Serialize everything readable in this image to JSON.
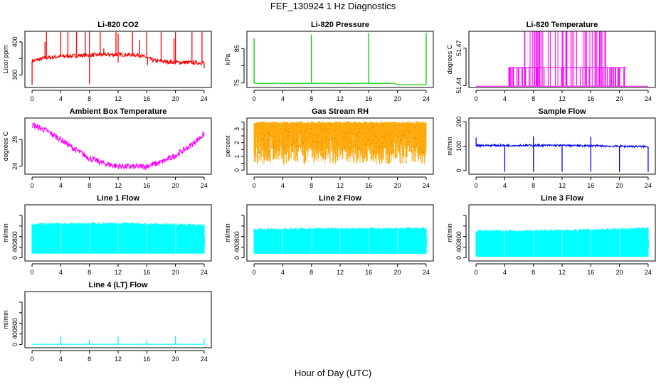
{
  "page": {
    "title": "FEF_130924  1 Hz Diagnostics",
    "xlabel": "Hour of Day (UTC)"
  },
  "chart_data": [
    {
      "type": "line",
      "title": "Li-820 CO2",
      "ylabel": "Licor ppm",
      "color": "#ff0000",
      "x_ticks": [
        0,
        4,
        8,
        12,
        16,
        20,
        24
      ],
      "xlim": [
        -1,
        25
      ],
      "y_ticks": [
        300,
        350,
        400
      ],
      "y_tick_labels": [
        "300",
        "",
        "400"
      ],
      "ylim": [
        262,
        432
      ],
      "baseline": [
        [
          0,
          342
        ],
        [
          2,
          352
        ],
        [
          4,
          356
        ],
        [
          8,
          360
        ],
        [
          12,
          362
        ],
        [
          15,
          360
        ],
        [
          16,
          352
        ],
        [
          17,
          343
        ],
        [
          20,
          338
        ],
        [
          24,
          337
        ]
      ],
      "noise": 6,
      "spikes": [
        [
          0,
          270
        ],
        [
          1.8,
          400
        ],
        [
          2,
          430
        ],
        [
          4,
          430
        ],
        [
          5,
          430
        ],
        [
          6.2,
          430
        ],
        [
          7.4,
          430
        ],
        [
          8,
          432
        ],
        [
          8,
          272
        ],
        [
          9.5,
          430
        ],
        [
          10,
          380
        ],
        [
          11.7,
          430
        ],
        [
          12,
          425
        ],
        [
          12,
          338
        ],
        [
          14,
          430
        ],
        [
          15,
          405
        ],
        [
          16,
          430
        ],
        [
          16.1,
          330
        ],
        [
          18,
          430
        ],
        [
          19.8,
          410
        ],
        [
          20,
          430
        ],
        [
          22.3,
          430
        ],
        [
          23.7,
          430
        ],
        [
          24,
          320
        ]
      ]
    },
    {
      "type": "line",
      "title": "Li-820 Pressure",
      "ylabel": "kPa",
      "color": "#00cc00",
      "x_ticks": [
        0,
        4,
        8,
        12,
        16,
        20,
        24
      ],
      "xlim": [
        -1,
        25
      ],
      "y_ticks": [
        75,
        80,
        85
      ],
      "y_tick_labels": [
        "75",
        "",
        "85"
      ],
      "ylim": [
        73.7,
        90
      ],
      "baseline": [
        [
          0,
          74.9
        ],
        [
          19.5,
          74.9
        ],
        [
          20,
          74.5
        ],
        [
          24,
          74.5
        ]
      ],
      "noise": 0.04,
      "spikes": [
        [
          0,
          88
        ],
        [
          8,
          89
        ],
        [
          16,
          89.5
        ],
        [
          24,
          89.5
        ]
      ]
    },
    {
      "type": "line",
      "title": "Li-820 Temperature",
      "ylabel": "degrees C",
      "color": "#ff00ff",
      "x_ticks": [
        0,
        4,
        8,
        12,
        16,
        20,
        24
      ],
      "xlim": [
        -1,
        25
      ],
      "y_ticks": [
        51.44,
        51.47
      ],
      "y_tick_labels": [
        "51.44",
        "51.47"
      ],
      "ylim": [
        51.4385,
        51.4835
      ],
      "levels": [
        51.4395,
        51.4545,
        51.4695
      ],
      "top_value": 51.4834,
      "segments": [
        [
          0,
          4.5,
          "low"
        ],
        [
          4.5,
          6.5,
          "mid_rare"
        ],
        [
          6.5,
          8.5,
          "mid_top_rare"
        ],
        [
          8.5,
          18.5,
          "mid_top"
        ],
        [
          18.5,
          21,
          "mid_rare"
        ],
        [
          21,
          24,
          "low"
        ]
      ]
    },
    {
      "type": "line",
      "title": "Ambient Box Temperature",
      "ylabel": "degrees C",
      "color": "#ff00ff",
      "x_ticks": [
        0,
        4,
        8,
        12,
        16,
        20,
        24
      ],
      "xlim": [
        -1,
        25
      ],
      "y_ticks": [
        24,
        28
      ],
      "y_tick_labels": [
        "24",
        "28"
      ],
      "ylim": [
        22.8,
        31.2
      ],
      "baseline": [
        [
          0,
          30.2
        ],
        [
          2,
          29.3
        ],
        [
          4,
          28.0
        ],
        [
          6,
          26.5
        ],
        [
          8,
          25.2
        ],
        [
          10,
          24.4
        ],
        [
          12,
          24.0
        ],
        [
          14,
          23.9
        ],
        [
          16,
          24.0
        ],
        [
          18,
          24.6
        ],
        [
          20,
          25.6
        ],
        [
          22,
          27.0
        ],
        [
          24,
          28.8
        ]
      ],
      "noise": 0.45
    },
    {
      "type": "line",
      "title": "Gas Stream RH",
      "ylabel": "percent",
      "color": "#ffa500",
      "marker_color": "#cc8400",
      "x_ticks": [
        0,
        4,
        8,
        12,
        16,
        20,
        24
      ],
      "xlim": [
        -1,
        25
      ],
      "y_ticks": [
        0,
        0.5,
        1,
        1.5,
        2,
        2.5,
        3,
        3.5
      ],
      "y_tick_labels": [
        "0",
        "",
        "1",
        "",
        "2",
        "",
        "3",
        ""
      ],
      "ylim": [
        -0.3,
        3.8
      ],
      "top": 3.55,
      "bottom_min": 0.0,
      "bottom_max": 2.3
    },
    {
      "type": "line",
      "title": "Sample Flow",
      "ylabel": "ml/min",
      "color": "#0000ff",
      "x_ticks": [
        0,
        4,
        8,
        12,
        16,
        20,
        24
      ],
      "xlim": [
        -1,
        25
      ],
      "y_ticks": [
        0,
        100,
        200
      ],
      "y_tick_labels": [
        "0",
        "100",
        "200"
      ],
      "ylim": [
        -15,
        215
      ],
      "baseline": [
        [
          0,
          103
        ],
        [
          12,
          103
        ],
        [
          24,
          98
        ]
      ],
      "noise": 4,
      "spikes": [
        [
          0,
          135
        ],
        [
          4,
          -5
        ],
        [
          8,
          140
        ],
        [
          8,
          -5
        ],
        [
          12,
          -5
        ],
        [
          16,
          138
        ],
        [
          16,
          -5
        ],
        [
          20,
          -5
        ],
        [
          24,
          -5
        ]
      ]
    },
    {
      "type": "area",
      "title": "Line 1 Flow",
      "ylabel": "ml/min",
      "color": "#00ffff",
      "x_ticks": [
        0,
        4,
        8,
        12,
        16,
        20,
        24
      ],
      "xlim": [
        -1,
        25
      ],
      "y_ticks": [
        0,
        200,
        400,
        600,
        800
      ],
      "y_tick_labels": [
        "0",
        "400",
        "800"
      ],
      "y_tick_label_values": [
        0,
        400,
        800
      ],
      "ylim": [
        -60,
        1000
      ],
      "low": 80,
      "high": [
        [
          0,
          640
        ],
        [
          12,
          655
        ],
        [
          24,
          620
        ]
      ],
      "gaps": [
        4,
        8,
        12,
        16,
        20
      ]
    },
    {
      "type": "area",
      "title": "Line 2 Flow",
      "ylabel": "ml/min",
      "color": "#00ffff",
      "x_ticks": [
        0,
        4,
        8,
        12,
        16,
        20,
        24
      ],
      "xlim": [
        -1,
        25
      ],
      "y_ticks": [
        0,
        200,
        400,
        600,
        800
      ],
      "y_tick_labels": [
        "0",
        "400",
        "800"
      ],
      "y_tick_label_values": [
        0,
        400,
        800
      ],
      "ylim": [
        -60,
        1000
      ],
      "low": 75,
      "high": [
        [
          0,
          540
        ],
        [
          12,
          555
        ],
        [
          24,
          560
        ]
      ],
      "gaps": [
        4,
        8,
        12,
        16,
        20
      ]
    },
    {
      "type": "area",
      "title": "Line 3 Flow",
      "ylabel": "ml/min",
      "color": "#00ffff",
      "x_ticks": [
        0,
        4,
        8,
        12,
        16,
        20,
        24
      ],
      "xlim": [
        -1,
        25
      ],
      "y_ticks": [
        0,
        200,
        400,
        600,
        800
      ],
      "y_tick_labels": [
        "0",
        "400",
        "800"
      ],
      "y_tick_label_values": [
        0,
        400,
        800
      ],
      "ylim": [
        -60,
        1000
      ],
      "low": 20,
      "high": [
        [
          0,
          510
        ],
        [
          12,
          520
        ],
        [
          24,
          560
        ]
      ],
      "gaps": [
        4,
        8,
        12,
        16,
        20
      ]
    },
    {
      "type": "line",
      "title": "Line 4 (LT) Flow",
      "ylabel": "ml/min",
      "color": "#00ffff",
      "x_ticks": [
        0,
        4,
        8,
        12,
        16,
        20,
        24
      ],
      "xlim": [
        -1,
        25
      ],
      "y_ticks": [
        0,
        200,
        400,
        600,
        800
      ],
      "y_tick_labels": [
        "0",
        "400",
        "800"
      ],
      "y_tick_label_values": [
        0,
        400,
        800
      ],
      "ylim": [
        -60,
        1000
      ],
      "baseline": [
        [
          0,
          5
        ],
        [
          24,
          5
        ]
      ],
      "noise": 2,
      "spikes": [
        [
          4,
          170
        ],
        [
          8,
          90
        ],
        [
          12,
          150
        ],
        [
          16,
          95
        ],
        [
          20,
          160
        ],
        [
          24,
          120
        ]
      ]
    }
  ]
}
